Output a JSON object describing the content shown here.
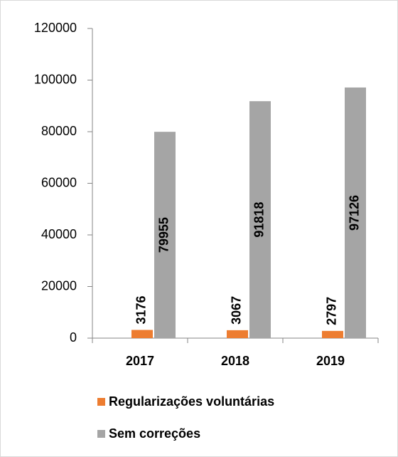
{
  "chart_data": {
    "type": "bar",
    "categories": [
      "2017",
      "2018",
      "2019"
    ],
    "series": [
      {
        "name": "Regularizações voluntárias",
        "color": "#ed7d31",
        "values": [
          3176,
          3067,
          2797
        ]
      },
      {
        "name": "Sem correções",
        "color": "#a5a5a5",
        "values": [
          79955,
          91818,
          97126
        ]
      }
    ],
    "ylim": [
      0,
      120000
    ],
    "yticks": [
      0,
      20000,
      40000,
      60000,
      80000,
      100000,
      120000
    ],
    "grid": false,
    "legend": "bottom",
    "data_labels": true
  }
}
